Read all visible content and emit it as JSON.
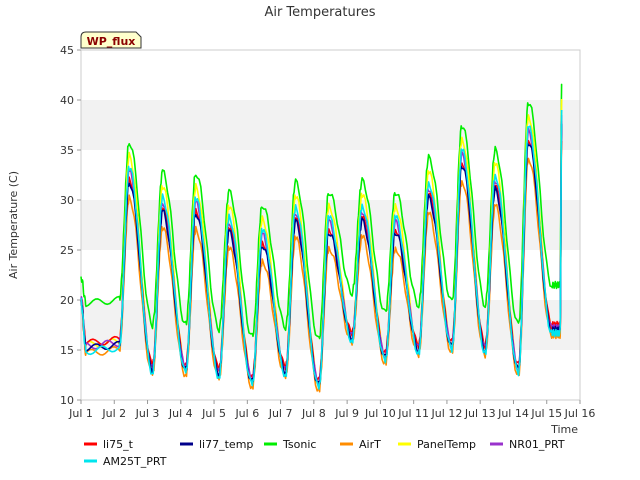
{
  "chart_data": {
    "type": "line",
    "title": "Air Temperatures",
    "xlabel": "Time",
    "ylabel": "Air Temperature (C)",
    "badge": "WP_flux",
    "xlim": [
      1,
      16
    ],
    "ylim": [
      10,
      45
    ],
    "x_ticks": [
      {
        "value": 1,
        "label": "Jul 1"
      },
      {
        "value": 2,
        "label": "Jul 2"
      },
      {
        "value": 3,
        "label": "Jul 3"
      },
      {
        "value": 4,
        "label": "Jul 4"
      },
      {
        "value": 5,
        "label": "Jul 5"
      },
      {
        "value": 6,
        "label": "Jul 6"
      },
      {
        "value": 7,
        "label": "Jul 7"
      },
      {
        "value": 8,
        "label": "Jul 8"
      },
      {
        "value": 9,
        "label": "Jul 9"
      },
      {
        "value": 10,
        "label": "Jul 10"
      },
      {
        "value": 11,
        "label": "Jul 11"
      },
      {
        "value": 12,
        "label": "Jul 12"
      },
      {
        "value": 13,
        "label": "Jul 13"
      },
      {
        "value": 14,
        "label": "Jul 14"
      },
      {
        "value": 15,
        "label": "Jul 15"
      },
      {
        "value": 16,
        "label": "Jul 16"
      }
    ],
    "y_ticks": [
      10,
      15,
      20,
      25,
      30,
      35,
      40,
      45
    ],
    "grid_bands": [
      [
        15,
        20
      ],
      [
        25,
        30
      ],
      [
        35,
        40
      ]
    ],
    "daily": {
      "days": [
        1,
        2,
        3,
        4,
        5,
        6,
        7,
        8,
        9,
        10,
        11,
        12,
        13,
        14,
        15
      ],
      "peak_offset": 0.45,
      "min_offset": 0.15,
      "base_max": [
        null,
        31.8,
        28.8,
        28.7,
        26.8,
        25.5,
        27.8,
        26.8,
        27.9,
        26.8,
        30.2,
        33.5,
        31.0,
        35.8,
        37.5
      ],
      "base_min": [
        15.2,
        15.5,
        13.0,
        13.0,
        12.6,
        11.8,
        12.8,
        11.5,
        16.2,
        14.2,
        15.0,
        15.3,
        15.0,
        13.0,
        17.0
      ],
      "start_value": 20.0,
      "end_x": 15.4,
      "end_value": 17.0
    },
    "series": [
      {
        "name": "li75_t",
        "color": "#ff0000",
        "max_offset": 0.3,
        "min_offset": 0.5
      },
      {
        "name": "li77_temp",
        "color": "#00008b",
        "max_offset": 0.0,
        "min_offset": 0.0
      },
      {
        "name": "Tsonic",
        "color": "#00ee00",
        "max_offset": 4.0,
        "min_offset": 4.5
      },
      {
        "name": "AirT",
        "color": "#ff8c00",
        "max_offset": -1.6,
        "min_offset": -0.5
      },
      {
        "name": "PanelTemp",
        "color": "#ffff00",
        "max_offset": 2.6,
        "min_offset": 0.3
      },
      {
        "name": "NR01_PRT",
        "color": "#9932cc",
        "max_offset": 1.0,
        "min_offset": 0.2
      },
      {
        "name": "AM25T_PRT",
        "color": "#00e5ee",
        "max_offset": 1.5,
        "min_offset": -0.3
      }
    ]
  }
}
